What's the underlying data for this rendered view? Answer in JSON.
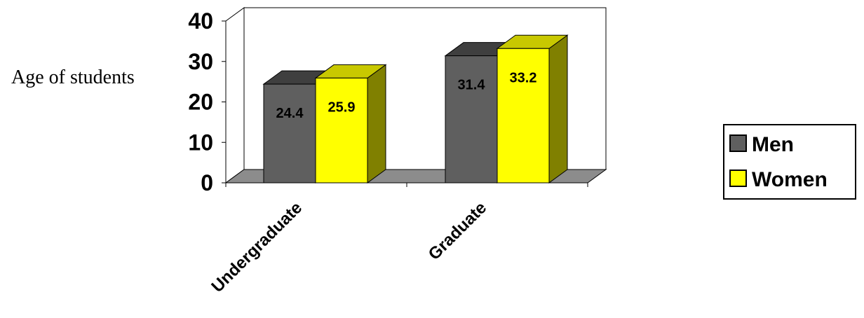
{
  "chart_data": {
    "type": "bar",
    "title": "",
    "xlabel": "",
    "ylabel": "Age of students",
    "categories": [
      "Undergraduate",
      "Graduate"
    ],
    "series": [
      {
        "name": "Men",
        "values": [
          24.4,
          31.4
        ],
        "color": "#5f5f5f",
        "side_color": "#2f2f2f",
        "top_color": "#3f3f3f"
      },
      {
        "name": "Women",
        "values": [
          25.9,
          33.2
        ],
        "color": "#ffff00",
        "side_color": "#808000",
        "top_color": "#c8c800"
      }
    ],
    "ylim": [
      0,
      40
    ],
    "yticks": [
      "0",
      "10",
      "20",
      "30",
      "40"
    ],
    "data_labels": [
      [
        "24.4",
        "31.4"
      ],
      [
        "25.9",
        "33.2"
      ]
    ],
    "floor_color": "#8c8c8c",
    "grid": false,
    "legend_position": "right",
    "three_d": true
  }
}
